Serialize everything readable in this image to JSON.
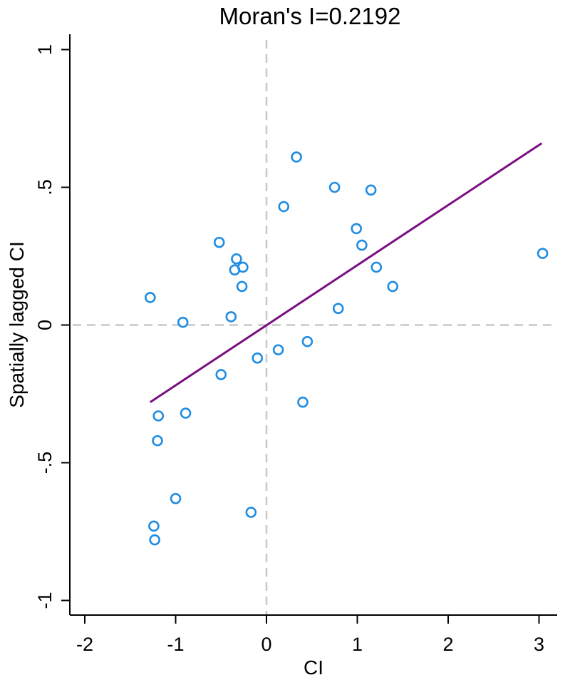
{
  "chart_data": {
    "type": "scatter",
    "title": "Moran's I=0.2192",
    "xlabel": "CI",
    "ylabel": "Spatially lagged CI",
    "xlim": [
      -2.2,
      3.2
    ],
    "ylim": [
      -1.05,
      1.07
    ],
    "x_ticks": [
      {
        "value": -2,
        "label": "-2"
      },
      {
        "value": -1,
        "label": "-1"
      },
      {
        "value": 0,
        "label": "0"
      },
      {
        "value": 1,
        "label": "1"
      },
      {
        "value": 2,
        "label": "2"
      },
      {
        "value": 3,
        "label": "3"
      }
    ],
    "y_ticks": [
      {
        "value": -1,
        "label": "-1"
      },
      {
        "value": -0.5,
        "label": "-.5"
      },
      {
        "value": 0,
        "label": "0"
      },
      {
        "value": 0.5,
        "label": ".5"
      },
      {
        "value": 1,
        "label": "1"
      }
    ],
    "reference_lines": {
      "x": 0,
      "y": 0
    },
    "fit_line": {
      "x": [
        -1.28,
        3.03
      ],
      "y": [
        -0.28,
        0.66
      ]
    },
    "points": [
      {
        "x": 0.33,
        "y": 0.61
      },
      {
        "x": 0.75,
        "y": 0.5
      },
      {
        "x": 1.15,
        "y": 0.49
      },
      {
        "x": 0.19,
        "y": 0.43
      },
      {
        "x": 0.99,
        "y": 0.35
      },
      {
        "x": 1.05,
        "y": 0.29
      },
      {
        "x": -0.52,
        "y": 0.3
      },
      {
        "x": -0.33,
        "y": 0.24
      },
      {
        "x": -0.26,
        "y": 0.21
      },
      {
        "x": -0.35,
        "y": 0.2
      },
      {
        "x": 1.21,
        "y": 0.21
      },
      {
        "x": 3.04,
        "y": 0.26
      },
      {
        "x": -0.27,
        "y": 0.14
      },
      {
        "x": 1.39,
        "y": 0.14
      },
      {
        "x": -1.28,
        "y": 0.1
      },
      {
        "x": -0.39,
        "y": 0.03
      },
      {
        "x": 0.79,
        "y": 0.06
      },
      {
        "x": -0.92,
        "y": 0.01
      },
      {
        "x": 0.45,
        "y": -0.06
      },
      {
        "x": 0.13,
        "y": -0.09
      },
      {
        "x": -0.1,
        "y": -0.12
      },
      {
        "x": -0.5,
        "y": -0.18
      },
      {
        "x": 0.4,
        "y": -0.28
      },
      {
        "x": -1.19,
        "y": -0.33
      },
      {
        "x": -0.89,
        "y": -0.32
      },
      {
        "x": -1.2,
        "y": -0.42
      },
      {
        "x": -1.0,
        "y": -0.63
      },
      {
        "x": -0.17,
        "y": -0.68
      },
      {
        "x": -1.24,
        "y": -0.73
      },
      {
        "x": -1.23,
        "y": -0.78
      }
    ],
    "grid": false,
    "colors": {
      "points": "#1f8de3",
      "fit_line": "#7a0f82",
      "reference": "#c8c8c8",
      "axis": "#000000"
    }
  }
}
